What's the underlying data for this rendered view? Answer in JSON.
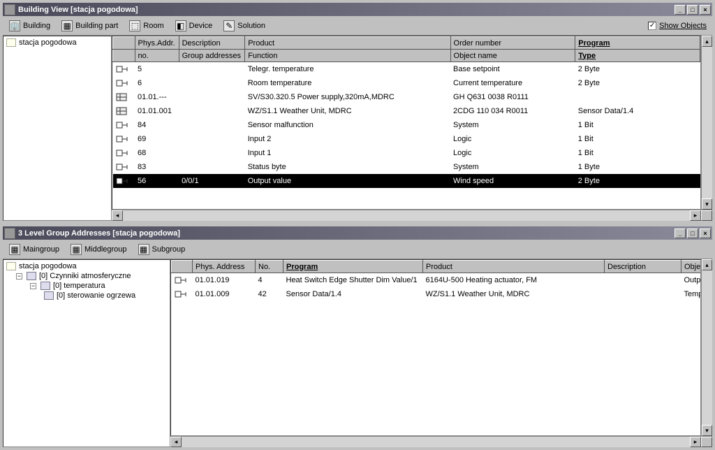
{
  "window1": {
    "title": "Building View [stacja pogodowa]",
    "toolbar": [
      {
        "icon": "🏢",
        "label": "Building",
        "name": "building-button"
      },
      {
        "icon": "▦",
        "label": "Building part",
        "name": "building-part-button"
      },
      {
        "icon": "⬚",
        "label": "Room",
        "name": "room-button"
      },
      {
        "icon": "◧",
        "label": "Device",
        "name": "device-button"
      },
      {
        "icon": "✎",
        "label": "Solution",
        "name": "solution-button"
      }
    ],
    "show_objects_label": "Show Objects",
    "show_objects_checked": "✓",
    "tree": {
      "root": "stacja pogodowa"
    },
    "headers1": {
      "col_icon": "",
      "phys_addr": "Phys.Addr.",
      "description": "Description",
      "product": "Product",
      "order_number": "Order number",
      "program": "Program"
    },
    "headers2": {
      "col_icon": "",
      "no": "no.",
      "group_addresses": "Group addresses",
      "function": "Function",
      "object_name": "Object name",
      "type": "Type"
    },
    "col_widths": {
      "icon": 30,
      "no": 60,
      "ga": 90,
      "func": 280,
      "obj": 170,
      "type": 170
    },
    "rows": [
      {
        "kind": "obj",
        "no": "5",
        "ga": "",
        "func": "Telegr. temperature",
        "obj": "Base setpoint",
        "type": "2 Byte"
      },
      {
        "kind": "obj",
        "no": "6",
        "ga": "",
        "func": "Room temperature",
        "obj": "Current temperature",
        "type": "2 Byte"
      },
      {
        "kind": "dev",
        "addr": "01.01.---",
        "desc": "",
        "product": "SV/S30.320.5 Power supply,320mA,MDRC",
        "order": "GH Q631 0038 R0111",
        "program": ""
      },
      {
        "kind": "dev",
        "addr": "01.01.001",
        "desc": "",
        "product": "WZ/S1.1 Weather Unit, MDRC",
        "order": "2CDG 110 034 R0011",
        "program": "Sensor Data/1.4"
      },
      {
        "kind": "obj",
        "no": "84",
        "ga": "",
        "func": "Sensor malfunction",
        "obj": "System",
        "type": "1 Bit"
      },
      {
        "kind": "obj",
        "no": "69",
        "ga": "",
        "func": "Input 2",
        "obj": "Logic",
        "type": "1 Bit"
      },
      {
        "kind": "obj",
        "no": "68",
        "ga": "",
        "func": "Input 1",
        "obj": "Logic",
        "type": "1 Bit"
      },
      {
        "kind": "obj",
        "no": "83",
        "ga": "",
        "func": "Status byte",
        "obj": "System",
        "type": "1 Byte"
      },
      {
        "kind": "obj",
        "no": "56",
        "ga": "0/0/1",
        "func": "Output value",
        "obj": "Wind speed",
        "type": "2 Byte",
        "selected": true
      }
    ]
  },
  "window2": {
    "title": "3 Level Group Addresses [stacja pogodowa]",
    "toolbar": [
      {
        "icon": "▦",
        "label": "Maingroup",
        "name": "maingroup-button"
      },
      {
        "icon": "▦",
        "label": "Middlegroup",
        "name": "middlegroup-button"
      },
      {
        "icon": "▦",
        "label": "Subgroup",
        "name": "subgroup-button"
      }
    ],
    "tree": [
      {
        "indent": 0,
        "exp": "",
        "label": "stacja pogodowa",
        "icon": "folder"
      },
      {
        "indent": 1,
        "exp": "−",
        "label": "[0] Czynniki atmosferyczne",
        "icon": "device"
      },
      {
        "indent": 2,
        "exp": "−",
        "label": "[0] temperatura",
        "icon": "device"
      },
      {
        "indent": 3,
        "exp": "",
        "label": "[0] sterowanie ogrzewa",
        "icon": "device"
      }
    ],
    "headers": {
      "col_icon": "",
      "phys_address": "Phys. Address",
      "no": "No.",
      "program": "Program",
      "product": "Product",
      "description": "Description",
      "object_name": "Object name"
    },
    "col_widths": {
      "icon": 30,
      "addr": 90,
      "no": 40,
      "prog": 200,
      "prod": 260,
      "desc": 110,
      "obj": 90
    },
    "rows": [
      {
        "addr": "01.01.019",
        "no": "4",
        "program": "Heat Switch Edge Shutter Dim Value/1",
        "product": "6164U-500 Heating actuator, FM",
        "desc": "",
        "obj": "Output"
      },
      {
        "addr": "01.01.009",
        "no": "42",
        "program": "Sensor Data/1.4",
        "product": "WZ/S1.1 Weather Unit, MDRC",
        "desc": "",
        "obj": "Temperature thr"
      }
    ]
  }
}
